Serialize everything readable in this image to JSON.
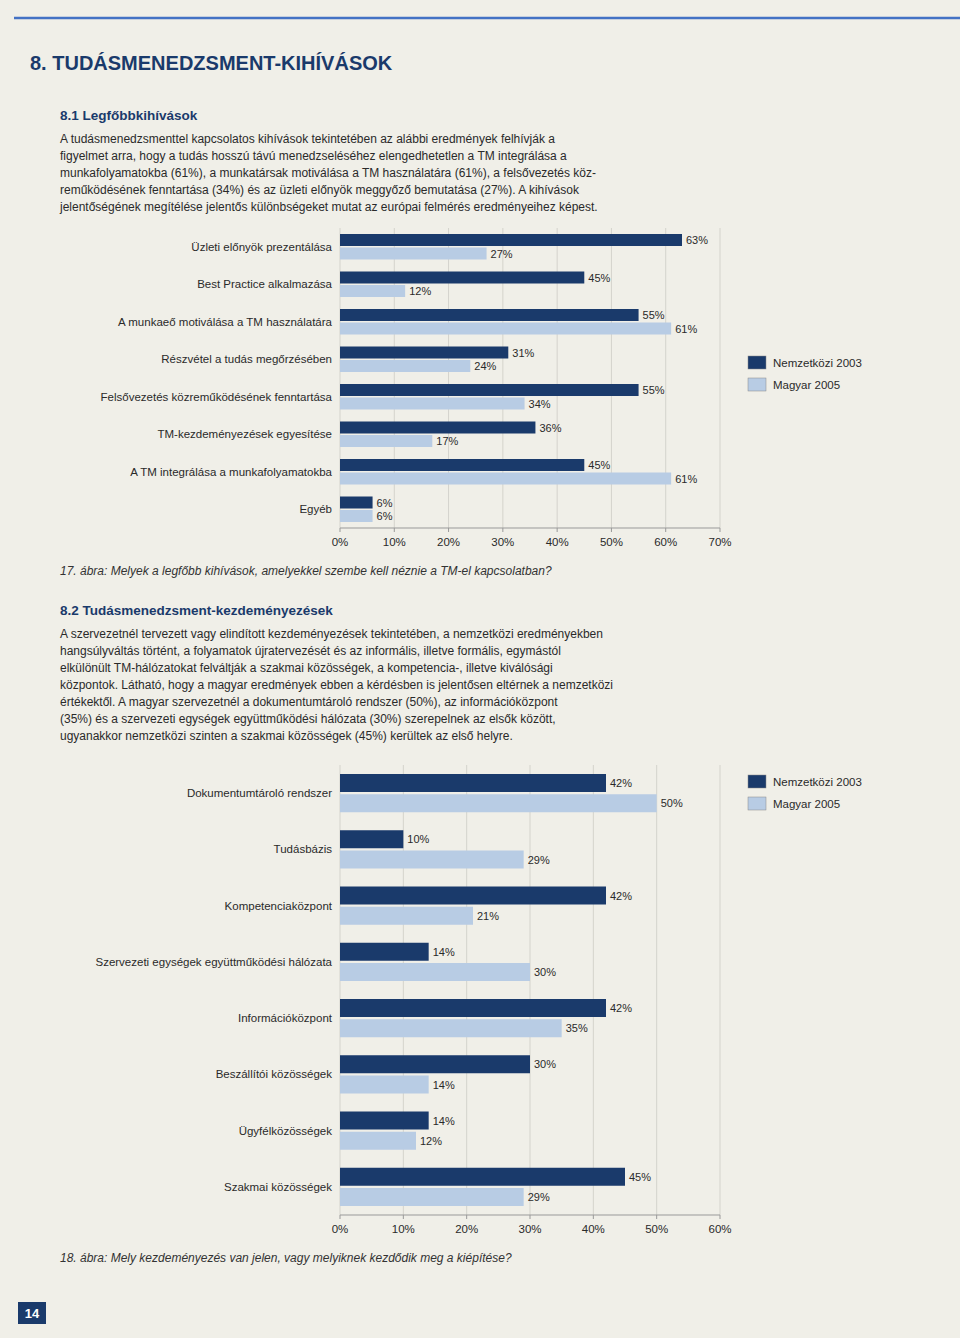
{
  "header": "8. TUDÁSMENEDZSMENT-KIHÍVÁSOK",
  "footer": "14",
  "sections": [
    {
      "title": "8.1 Legfőbbkihívások",
      "body": [
        "A tudásmenedzsmenttel kapcsolatos kihívások tekintetében az alábbi eredmények felhívják a",
        "figyelmet arra, hogy a tudás hosszú távú menedzseléséhez elengedhetetlen a TM integrálása a",
        "munkafolyamatokba (61%), a munkatársak motiválása a TM használatára (61%), a felsővezetés köz-",
        "reműködésének fenntartása (34%) és az üzleti előnyök meggyőző bemutatása (27%). A kihívások",
        "jelentőségének megítélése jelentős különbségeket mutat az európai felmérés eredményeihez képest."
      ]
    },
    {
      "title": "8.2 Tudásmenedzsment-kezdeményezések",
      "body": [
        "A szervezetnél tervezett vagy elindított kezdeményezések tekintetében, a nemzetközi eredményekben",
        "hangsúlyváltás történt, a folyamatok újratervezését és az informális, illetve formális, egymástól",
        "elkülönült TM-hálózatokat felváltják a szakmai közösségek, a kompetencia-, illetve kiválósági",
        "központok. Látható, hogy a magyar eredmények ebben a kérdésben is jelentősen eltérnek a nemzetközi",
        "értékektől. A magyar szervezetnél a dokumentumtároló rendszer (50%), az információközpont",
        "(35%) és a szervezeti egységek együttműködési hálózata (30%) szerepelnek az elsők között,",
        "ugyanakkor nemzetközi szinten a szakmai közösségek (45%) kerültek az első helyre."
      ]
    }
  ],
  "chart_data": [
    {
      "type": "bar",
      "orientation": "horizontal",
      "title": "17. ábra: Melyek a legfőbb kihívások, amelyekkel szembe kell néznie a TM-el kapcsolatban?",
      "categories": [
        "Üzleti előnyök prezentálása",
        "Best Practice alkalmazása",
        "A munkaeő motiválása a TM használatára",
        "Részvétel a tudás megőrzésében",
        "Felsővezetés közreműködésének fenntartása",
        "TM-kezdeményezések egyesítése",
        "A TM integrálása a munkafolyamatokba",
        "Egyéb"
      ],
      "series": [
        {
          "name": "Nemzetközi 2003",
          "color": "#1a3a6b",
          "values": [
            63,
            45,
            55,
            31,
            55,
            36,
            45,
            6
          ],
          "value_labels": [
            "63%",
            "45%",
            "55%",
            "31%",
            "55%",
            "36%",
            "45%",
            "6%"
          ]
        },
        {
          "name": "Magyar 2005",
          "color": "#b8cce4",
          "values": [
            27,
            12,
            61,
            24,
            34,
            17,
            61,
            6
          ],
          "value_labels": [
            "27%",
            "12%",
            "61%",
            "24%",
            "34%",
            "17%",
            "61%",
            "6%"
          ]
        }
      ],
      "xlim": [
        0,
        70
      ],
      "xticks": [
        {
          "value": 0,
          "label": "0%"
        },
        {
          "value": 10,
          "label": "10%"
        },
        {
          "value": 20,
          "label": "20%"
        },
        {
          "value": 30,
          "label": "30%"
        },
        {
          "value": 40,
          "label": "40%"
        },
        {
          "value": 50,
          "label": "50%"
        },
        {
          "value": 60,
          "label": "60%"
        },
        {
          "value": 70,
          "label": "70%"
        }
      ],
      "grid": true,
      "data_labels": true,
      "legend": "right"
    },
    {
      "type": "bar",
      "orientation": "horizontal",
      "title": "18. ábra: Mely kezdeményezés van jelen, vagy melyiknek kezdődik meg a kiépítése?",
      "categories": [
        "Dokumentumtároló rendszer",
        "Tudásbázis",
        "Kompetenciaközpont",
        "Szervezeti egységek együttműködési hálózata",
        "Információközpont",
        "Beszállítói közösségek",
        "Ügyfélközösségek",
        "Szakmai közösségek"
      ],
      "series": [
        {
          "name": "Nemzetközi 2003",
          "color": "#1a3a6b",
          "values": [
            42,
            10,
            42,
            14,
            42,
            30,
            14,
            45
          ],
          "value_labels": [
            "42%",
            "10%",
            "42%",
            "14%",
            "42%",
            "30%",
            "14%",
            "45%"
          ]
        },
        {
          "name": "Magyar 2005",
          "color": "#b8cce4",
          "values": [
            50,
            29,
            21,
            30,
            35,
            14,
            12,
            29
          ],
          "value_labels": [
            "50%",
            "29%",
            "21%",
            "30%",
            "35%",
            "14%",
            "12%",
            "29%"
          ]
        }
      ],
      "xlim": [
        0,
        60
      ],
      "xticks": [
        {
          "value": 0,
          "label": "0%"
        },
        {
          "value": 10,
          "label": "10%"
        },
        {
          "value": 20,
          "label": "20%"
        },
        {
          "value": 30,
          "label": "30%"
        },
        {
          "value": 40,
          "label": "40%"
        },
        {
          "value": 50,
          "label": "50%"
        },
        {
          "value": 60,
          "label": "60%"
        }
      ],
      "grid": true,
      "data_labels": true,
      "legend": "upper right"
    }
  ]
}
